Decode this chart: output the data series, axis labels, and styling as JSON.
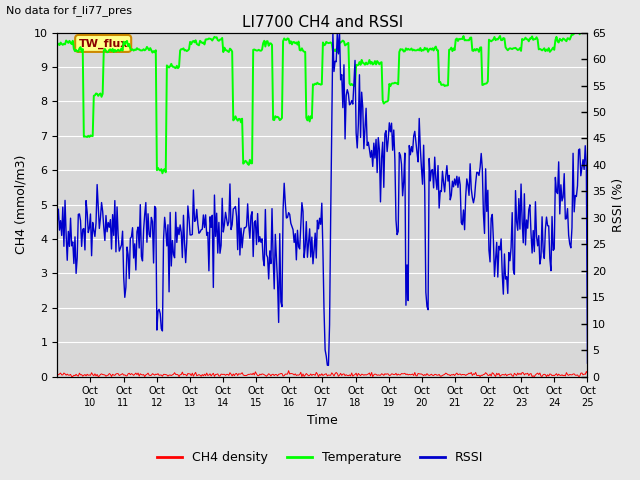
{
  "title": "LI7700 CH4 and RSSI",
  "annotation": "No data for f_li77_pres",
  "box_label": "TW_flux",
  "xlabel": "Time",
  "ylabel_left": "CH4 (mmol/m3)",
  "ylabel_right": "RSSI (%)",
  "ylim_left": [
    0.0,
    10.0
  ],
  "ylim_right": [
    0,
    65
  ],
  "yticks_left": [
    0.0,
    1.0,
    2.0,
    3.0,
    4.0,
    5.0,
    6.0,
    7.0,
    8.0,
    9.0,
    10.0
  ],
  "yticks_right": [
    0,
    5,
    10,
    15,
    20,
    25,
    30,
    35,
    40,
    45,
    50,
    55,
    60,
    65
  ],
  "xtick_labels": [
    "Oct 10",
    "Oct 11",
    "Oct 12",
    "Oct 13",
    "Oct 14",
    "Oct 15",
    "Oct 16",
    "Oct 17",
    "Oct 18",
    "Oct 19",
    "Oct 20",
    "Oct 21",
    "Oct 22",
    "Oct 23",
    "Oct 24",
    "Oct 25"
  ],
  "fig_facecolor": "#e8e8e8",
  "ax_facecolor": "#d8d8d8",
  "ch4_color": "#ff0000",
  "temp_color": "#00ff00",
  "rssi_color": "#0000cc",
  "legend_items": [
    "CH4 density",
    "Temperature",
    "RSSI"
  ],
  "seed": 42,
  "figsize": [
    6.4,
    4.8
  ],
  "dpi": 100
}
